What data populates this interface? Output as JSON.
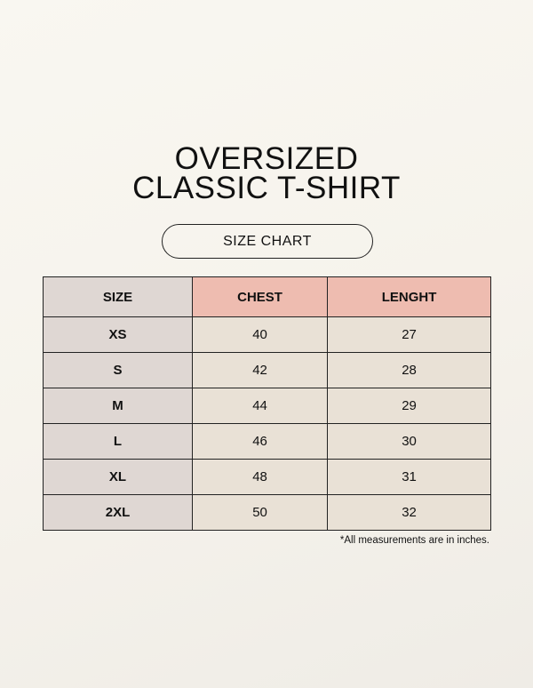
{
  "title": {
    "line1": "OVERSIZED",
    "line2": "CLASSIC T-SHIRT"
  },
  "subtitle": "SIZE CHART",
  "table": {
    "headers": [
      "SIZE",
      "CHEST",
      "LENGHT"
    ],
    "rows": [
      [
        "XS",
        "40",
        "27"
      ],
      [
        "S",
        "42",
        "28"
      ],
      [
        "M",
        "44",
        "29"
      ],
      [
        "L",
        "46",
        "30"
      ],
      [
        "XL",
        "48",
        "31"
      ],
      [
        "2XL",
        "50",
        "32"
      ]
    ]
  },
  "note": "*All measurements are in inches.",
  "colors": {
    "background": "#f7f5ef",
    "size_column": "#dfd7d3",
    "header_accent": "#eebcb0",
    "cell": "#e9e1d6"
  }
}
